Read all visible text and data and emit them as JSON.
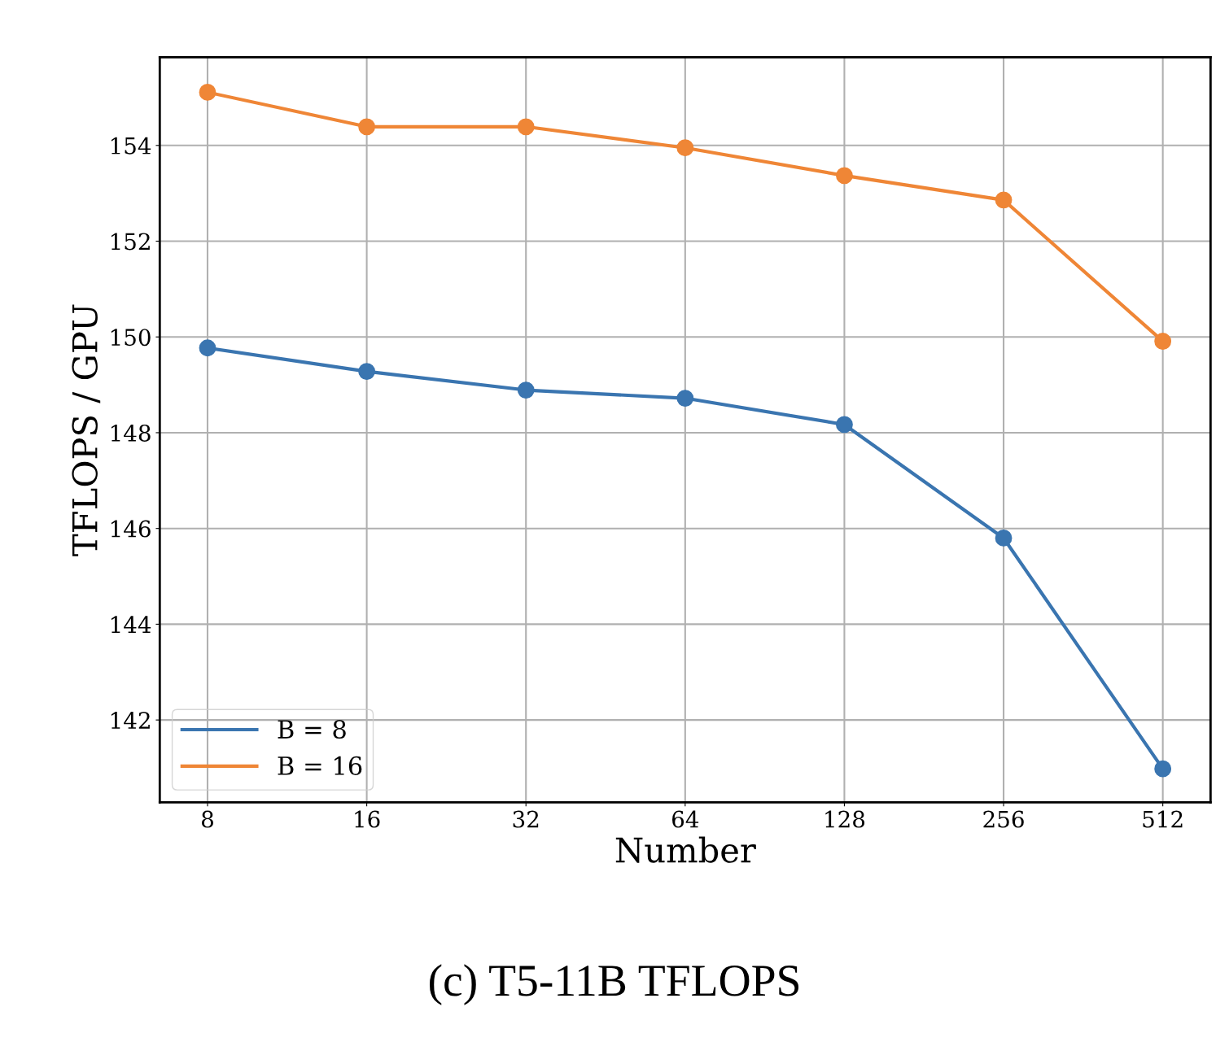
{
  "chart_data": {
    "type": "line",
    "xlabel": "Number",
    "ylabel": "TFLOPS / GPU",
    "annotations": [
      "(c) T5-11B TFLOPS"
    ],
    "categories": [
      "8",
      "16",
      "32",
      "64",
      "128",
      "256",
      "512"
    ],
    "series": [
      {
        "name": "B = 8",
        "color": "#3a75b0",
        "values": [
          149.77,
          149.28,
          148.89,
          148.72,
          148.17,
          145.8,
          140.98
        ]
      },
      {
        "name": "B = 16",
        "color": "#ef8636",
        "values": [
          155.11,
          154.39,
          154.39,
          153.95,
          153.37,
          152.86,
          149.91
        ]
      }
    ],
    "ylim": [
      140.28,
      155.84
    ],
    "yticks": [
      142,
      144,
      146,
      148,
      150,
      152,
      154
    ],
    "grid": true,
    "legend": "bottom left",
    "marker": "circle",
    "line_style": "solid"
  }
}
